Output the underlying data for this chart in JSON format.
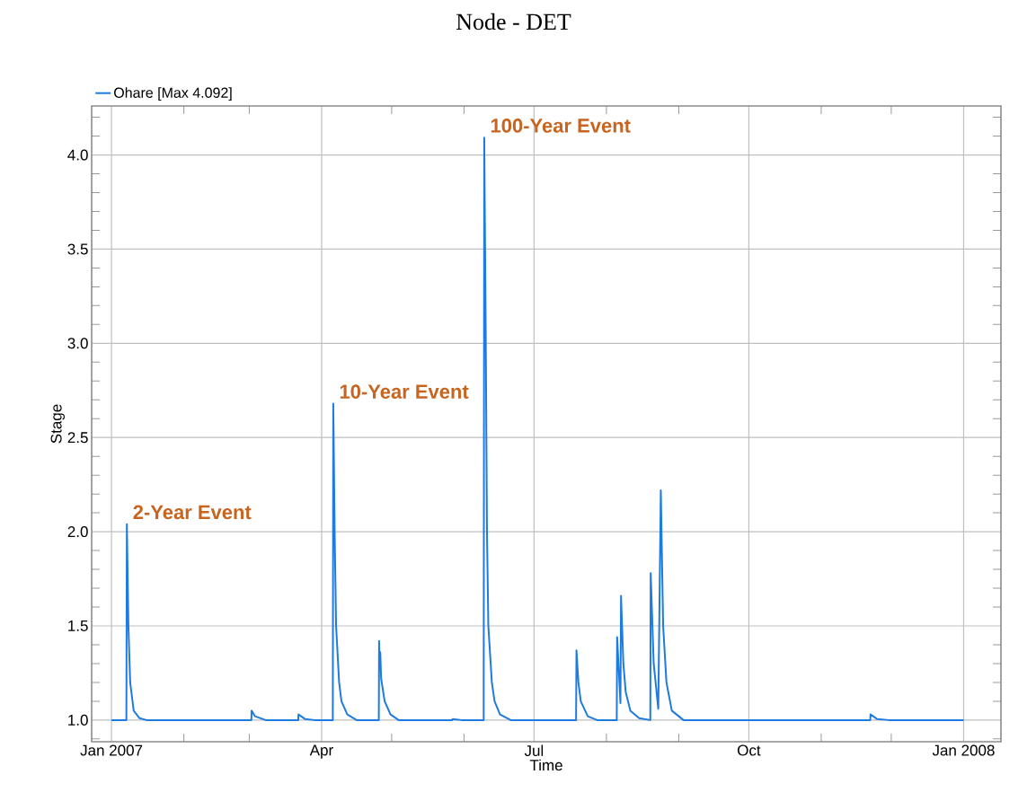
{
  "chart_data": {
    "type": "line",
    "title": "Node - DET",
    "xlabel": "Time",
    "ylabel": "Stage",
    "x": [
      "2007-01-01",
      "2007-01-07T09:00",
      "2007-01-07T14:00",
      "2007-01-08T06:00",
      "2007-01-09T00:00",
      "2007-01-10T12:00",
      "2007-01-13",
      "2007-01-16",
      "2007-03-01T22:00",
      "2007-03-02",
      "2007-03-03T12:00",
      "2007-03-08",
      "2007-03-22",
      "2007-03-22T02:00",
      "2007-03-25",
      "2007-03-29",
      "2007-04-05T19:00",
      "2007-04-06",
      "2007-04-06T14:00",
      "2007-04-07T05:00",
      "2007-04-08T12:00",
      "2007-04-09T12:00",
      "2007-04-12",
      "2007-04-16",
      "2007-04-25T12:00",
      "2007-04-25T15:00",
      "2007-04-25T20:00",
      "2007-04-26T03:00",
      "2007-04-26T12:00",
      "2007-04-28",
      "2007-04-30T12:00",
      "2007-05-04",
      "2007-05-27",
      "2007-05-27T03:00",
      "2007-05-31",
      "2007-06-09T10:00",
      "2007-06-09T16:00",
      "2007-06-10T08:00",
      "2007-06-10T20:00",
      "2007-06-11T10:00",
      "2007-06-12T22:00",
      "2007-06-14T02:00",
      "2007-06-16T10:00",
      "2007-06-21",
      "2007-07-19",
      "2007-07-19T04:00",
      "2007-07-20",
      "2007-07-21",
      "2007-07-24",
      "2007-07-28",
      "2007-08-05T10:00",
      "2007-08-05T14:00",
      "2007-08-07",
      "2007-08-07T06:00",
      "2007-08-08T06:00",
      "2007-08-09T06:00",
      "2007-08-11T06:00",
      "2007-08-15",
      "2007-08-19T19:00",
      "2007-08-19T23:00",
      "2007-08-21T06:00",
      "2007-08-23T05:00",
      "2007-08-24T07:00",
      "2007-08-25T07:00",
      "2007-08-26T17:00",
      "2007-08-29",
      "2007-09-03",
      "2007-11-22",
      "2007-11-22T03:00",
      "2007-11-25",
      "2007-11-30",
      "2008-01-01"
    ],
    "series": [
      {
        "name": "Ohare [Max 4.092]",
        "color": "#1e7be0",
        "values": [
          1.0,
          1.0,
          2.04,
          1.5,
          1.2,
          1.05,
          1.01,
          1.0,
          1.0,
          1.05,
          1.02,
          1.0,
          1.0,
          1.03,
          1.005,
          1.0,
          1.0,
          2.68,
          2.0,
          1.5,
          1.2,
          1.1,
          1.03,
          1.0,
          1.0,
          1.42,
          1.3,
          1.36,
          1.22,
          1.1,
          1.03,
          1.0,
          1.0,
          1.005,
          1.0,
          1.0,
          4.092,
          3.0,
          2.0,
          1.5,
          1.2,
          1.1,
          1.03,
          1.0,
          1.0,
          1.37,
          1.2,
          1.1,
          1.02,
          1.0,
          1.0,
          1.44,
          1.09,
          1.66,
          1.3,
          1.15,
          1.05,
          1.01,
          1.0,
          1.78,
          1.3,
          1.06,
          2.22,
          1.5,
          1.2,
          1.05,
          1.0,
          1.0,
          1.03,
          1.005,
          1.0,
          1.0
        ]
      }
    ],
    "xlim": [
      "2006-12-23T12:00",
      "2008-01-17"
    ],
    "ylim": [
      0.885,
      4.26
    ],
    "xticks": [
      {
        "value": "2007-01-01",
        "label": "Jan 2007"
      },
      {
        "value": "2007-02-01",
        "label": null
      },
      {
        "value": "2007-03-01",
        "label": null
      },
      {
        "value": "2007-04-01",
        "label": "Apr"
      },
      {
        "value": "2007-05-01",
        "label": null
      },
      {
        "value": "2007-06-01",
        "label": null
      },
      {
        "value": "2007-07-01",
        "label": "Jul"
      },
      {
        "value": "2007-08-01",
        "label": null
      },
      {
        "value": "2007-09-01",
        "label": null
      },
      {
        "value": "2007-10-01",
        "label": "Oct"
      },
      {
        "value": "2007-11-01",
        "label": null
      },
      {
        "value": "2007-12-01",
        "label": null
      },
      {
        "value": "2008-01-01",
        "label": "Jan 2008"
      }
    ],
    "yticks": [
      {
        "value": 0.9,
        "label": null
      },
      {
        "value": 1.0,
        "label": "1.0"
      },
      {
        "value": 1.1,
        "label": null
      },
      {
        "value": 1.2,
        "label": null
      },
      {
        "value": 1.3,
        "label": null
      },
      {
        "value": 1.4,
        "label": null
      },
      {
        "value": 1.5,
        "label": "1.5"
      },
      {
        "value": 1.6,
        "label": null
      },
      {
        "value": 1.7,
        "label": null
      },
      {
        "value": 1.8,
        "label": null
      },
      {
        "value": 1.9,
        "label": null
      },
      {
        "value": 2.0,
        "label": "2.0"
      },
      {
        "value": 2.1,
        "label": null
      },
      {
        "value": 2.2,
        "label": null
      },
      {
        "value": 2.3,
        "label": null
      },
      {
        "value": 2.4,
        "label": null
      },
      {
        "value": 2.5,
        "label": "2.5"
      },
      {
        "value": 2.6,
        "label": null
      },
      {
        "value": 2.7,
        "label": null
      },
      {
        "value": 2.8,
        "label": null
      },
      {
        "value": 2.9,
        "label": null
      },
      {
        "value": 3.0,
        "label": "3.0"
      },
      {
        "value": 3.1,
        "label": null
      },
      {
        "value": 3.2,
        "label": null
      },
      {
        "value": 3.3,
        "label": null
      },
      {
        "value": 3.4,
        "label": null
      },
      {
        "value": 3.5,
        "label": "3.5"
      },
      {
        "value": 3.6,
        "label": null
      },
      {
        "value": 3.7,
        "label": null
      },
      {
        "value": 3.8,
        "label": null
      },
      {
        "value": 3.9,
        "label": null
      },
      {
        "value": 4.0,
        "label": "4.0"
      },
      {
        "value": 4.1,
        "label": null
      },
      {
        "value": 4.2,
        "label": null
      }
    ],
    "annotations": [
      {
        "text": "2-Year Event",
        "x": "2007-01-07T14:00",
        "y": 2.04
      },
      {
        "text": "10-Year Event",
        "x": "2007-04-06",
        "y": 2.68
      },
      {
        "text": "100-Year Event",
        "x": "2007-06-09T16:00",
        "y": 4.092
      }
    ],
    "grid": true,
    "legend": "top left"
  }
}
